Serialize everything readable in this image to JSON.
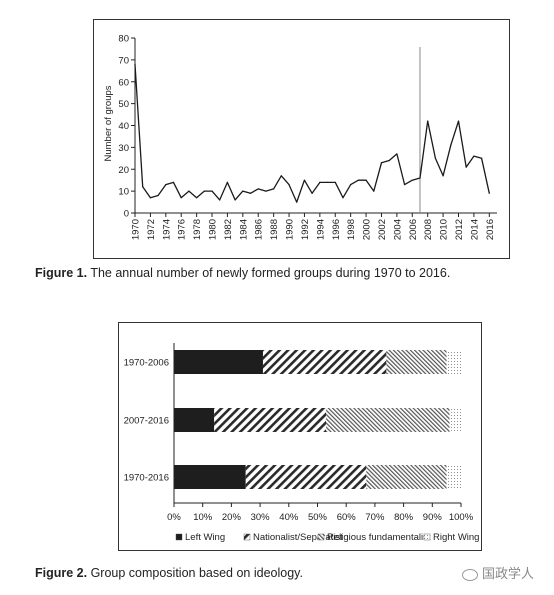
{
  "chart_data": [
    {
      "type": "line",
      "title": "",
      "xlabel": "",
      "ylabel": "Number of groups",
      "ylim": [
        0,
        80
      ],
      "yticks": [
        0,
        10,
        20,
        30,
        40,
        50,
        60,
        70,
        80
      ],
      "xticks": [
        "1970",
        "1972",
        "1974",
        "1976",
        "1978",
        "1980",
        "1982",
        "1984",
        "1986",
        "1988",
        "1990",
        "1992",
        "1994",
        "1996",
        "1998",
        "2000",
        "2002",
        "2004",
        "2006",
        "2008",
        "2010",
        "2012",
        "2014",
        "2016"
      ],
      "vline_x": 2007,
      "grid": false,
      "x": [
        1970,
        1971,
        1972,
        1973,
        1974,
        1975,
        1976,
        1977,
        1978,
        1979,
        1980,
        1981,
        1982,
        1983,
        1984,
        1985,
        1986,
        1987,
        1988,
        1989,
        1990,
        1991,
        1992,
        1993,
        1994,
        1995,
        1996,
        1997,
        1998,
        1999,
        2000,
        2001,
        2002,
        2003,
        2004,
        2005,
        2006,
        2007,
        2008,
        2009,
        2010,
        2011,
        2012,
        2013,
        2014,
        2015,
        2016
      ],
      "y": [
        68,
        12,
        7,
        8,
        13,
        14,
        7,
        10,
        7,
        10,
        10,
        6,
        14,
        6,
        10,
        9,
        11,
        10,
        11,
        17,
        13,
        5,
        15,
        9,
        14,
        14,
        14,
        7,
        13,
        15,
        15,
        10,
        23,
        24,
        27,
        13,
        15,
        16,
        42,
        25,
        17,
        31,
        42,
        21,
        26,
        25,
        9
      ],
      "caption_label": "Figure 1.",
      "caption_text": " The annual number of newly formed groups during 1970 to 2016."
    },
    {
      "type": "bar",
      "orientation": "horizontal",
      "stacked": true,
      "categories": [
        "1970-2006",
        "2007-2016",
        "1970-2016"
      ],
      "series": [
        {
          "name": "Left Wing",
          "values": [
            31,
            14,
            25
          ],
          "pattern": "solid"
        },
        {
          "name": "Nationalist/Separatist",
          "values": [
            43,
            39,
            42
          ],
          "pattern": "hatch-back"
        },
        {
          "name": "Religious fundamentalist",
          "values": [
            21,
            43,
            28
          ],
          "pattern": "hatch-fwd"
        },
        {
          "name": "Right Wing",
          "values": [
            5,
            4,
            5
          ],
          "pattern": "dots"
        }
      ],
      "xticks": [
        "0%",
        "10%",
        "20%",
        "30%",
        "40%",
        "50%",
        "60%",
        "70%",
        "80%",
        "90%",
        "100%"
      ],
      "xlim": [
        0,
        100
      ],
      "legend_position": "bottom",
      "caption_label": "Figure 2.",
      "caption_text": " Group composition based on ideology."
    }
  ],
  "watermark": {
    "text": "国政学人",
    "icon": "wechat-icon"
  },
  "colors": {
    "line": "#1a1a1a",
    "axis": "#222222",
    "vline": "#888888",
    "solid": "#1e1e1e",
    "hatch": "#2a2a2a"
  }
}
